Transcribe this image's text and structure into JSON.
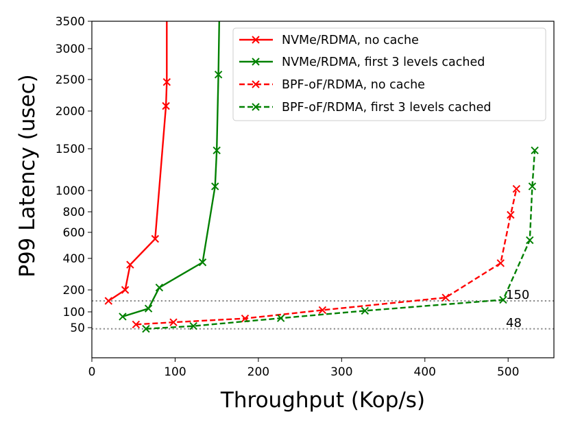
{
  "chart_data": {
    "type": "line",
    "xlabel": "Throughput (Kop/s)",
    "ylabel": "P99 Latency (usec)",
    "xlim": [
      0,
      555
    ],
    "ylim": [
      0,
      3500
    ],
    "y_scale": "piecewise",
    "xticks": [
      0,
      100,
      200,
      300,
      400,
      500
    ],
    "yticks": [
      50,
      100,
      200,
      400,
      600,
      800,
      1000,
      1500,
      2000,
      2500,
      3000,
      3500
    ],
    "legend_position": "top-right",
    "series": [
      {
        "name": "NVMe/RDMA, no cache",
        "color": "#ff0000",
        "style": "solid",
        "x": [
          20,
          40,
          46,
          76,
          89,
          90,
          90
        ],
        "y": [
          150,
          200,
          360,
          550,
          2080,
          2460,
          3500
        ]
      },
      {
        "name": "NVMe/RDMA, first 3 levels cached",
        "color": "#008000",
        "style": "solid",
        "x": [
          37,
          68,
          81,
          133,
          148,
          150,
          152,
          153
        ],
        "y": [
          85,
          115,
          215,
          375,
          1050,
          1480,
          2580,
          3500
        ]
      },
      {
        "name": "BPF-oF/RDMA, no cache",
        "color": "#ff0000",
        "style": "dashed",
        "x": [
          53,
          98,
          184,
          277,
          425,
          491,
          503,
          510
        ],
        "y": [
          60,
          67,
          79,
          108,
          165,
          370,
          770,
          1020
        ]
      },
      {
        "name": "BPF-oF/RDMA, first 3 levels cached",
        "color": "#008000",
        "style": "dashed",
        "x": [
          65,
          122,
          227,
          328,
          494,
          526,
          529,
          532
        ],
        "y": [
          48,
          55,
          80,
          105,
          155,
          540,
          1050,
          1480
        ]
      }
    ],
    "reference_lines": [
      {
        "y": 150,
        "label": "150",
        "color": "#888888",
        "style": "dotted"
      },
      {
        "y": 48,
        "label": "48",
        "color": "#888888",
        "style": "dotted"
      }
    ]
  }
}
